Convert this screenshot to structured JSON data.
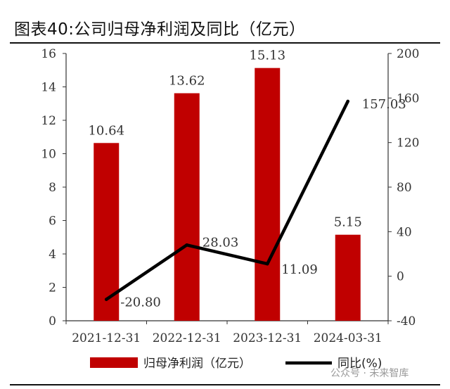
{
  "header": {
    "title": "图表40:公司归母净利润及同比（亿元）"
  },
  "watermark": "公众号 · 未来智库",
  "chart_data": {
    "type": "bar",
    "categories": [
      "2021-12-31",
      "2022-12-31",
      "2023-12-31",
      "2024-03-31"
    ],
    "series": [
      {
        "name": "归母净利润（亿元）",
        "type": "bar",
        "axis": "left",
        "color": "#c00000",
        "values": [
          10.64,
          13.62,
          15.13,
          5.15
        ],
        "labels": [
          "10.64",
          "13.62",
          "15.13",
          "5.15"
        ]
      },
      {
        "name": "同比(%)",
        "type": "line",
        "axis": "right",
        "color": "#000000",
        "values": [
          -20.8,
          28.03,
          11.09,
          157.03
        ],
        "labels": [
          "-20.80",
          "28.03",
          "11.09",
          "157.03"
        ]
      }
    ],
    "left_axis": {
      "ylim": [
        0,
        16
      ],
      "ticks": [
        "0",
        "2",
        "4",
        "6",
        "8",
        "10",
        "12",
        "14",
        "16"
      ]
    },
    "right_axis": {
      "ylim": [
        -40,
        200
      ],
      "ticks": [
        "-40",
        "0",
        "40",
        "80",
        "120",
        "160",
        "200"
      ]
    },
    "grid": false,
    "legend_position": "bottom"
  }
}
